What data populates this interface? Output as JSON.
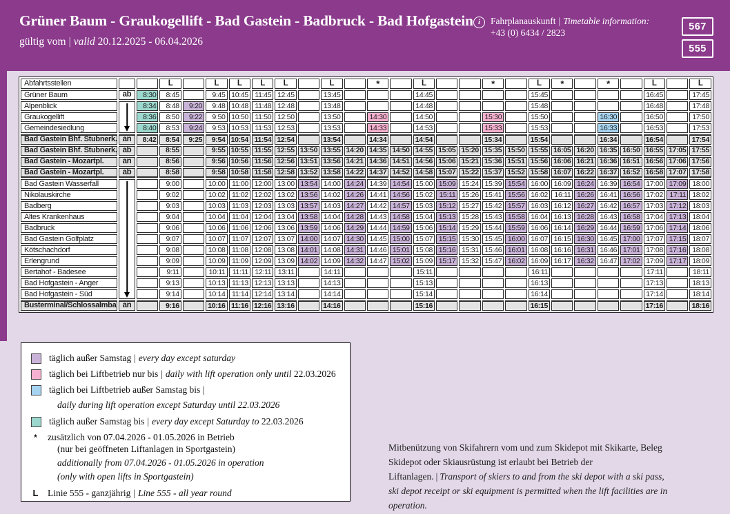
{
  "misc": {
    "pipe": "|"
  },
  "header": {
    "title": "Grüner Baum - Graukogellift - Bad Gastein - Badbruck - Bad Hofgastein",
    "validity_label": "gültig vom",
    "validity_valid": "valid",
    "validity_dates": "20.12.2025 - 06.04.2026",
    "info_label_de": "Fahrplanauskunft",
    "info_label_en": "Timetable information:",
    "info_phone": "+43 (0) 6434 / 2823",
    "route_numbers": [
      "567",
      "555"
    ]
  },
  "colors": {
    "brand_purple": "#8b3a8c",
    "page_background": "#e3d8e8",
    "cell_lavender": "#cab3d8",
    "cell_pink": "#f7b1d0",
    "cell_blue": "#a6d4f0",
    "cell_teal": "#9cd8ce",
    "bold_row_gray": "#e3e3e3",
    "grid_line": "#2b2b2b"
  },
  "table": {
    "corner_label": "Abfahrtsstellen",
    "column_markers": [
      "",
      "L",
      "",
      "L",
      "L",
      "L",
      "L",
      "",
      "L",
      "",
      "*",
      "",
      "L",
      "",
      "",
      "*",
      "",
      "L",
      "*",
      "",
      "*",
      "",
      "L",
      "",
      "L"
    ],
    "arrows": [
      {
        "start": 1,
        "end": 3
      },
      {
        "start": 8,
        "end": 18
      }
    ],
    "rows": [
      {
        "stop": "Grüner Baum",
        "marker": "ab",
        "bold": false,
        "times": [
          "8:30|t",
          "8:45",
          "",
          "9:45",
          "10:45",
          "11:45",
          "12:45",
          "",
          "13:45",
          "",
          "",
          "",
          "14:45",
          "",
          "",
          "",
          "",
          "15:45",
          "",
          "",
          "",
          "",
          "16:45",
          "",
          "17:45"
        ]
      },
      {
        "stop": "Alpenblick",
        "marker": "",
        "bold": false,
        "times": [
          "8:34|t",
          "8:48",
          "9:20|l",
          "9:48",
          "10:48",
          "11:48",
          "12:48",
          "",
          "13:48",
          "",
          "",
          "",
          "14:48",
          "",
          "",
          "",
          "",
          "15:48",
          "",
          "",
          "",
          "",
          "16:48",
          "",
          "17:48"
        ]
      },
      {
        "stop": "Graukogellift",
        "marker": "",
        "bold": false,
        "times": [
          "8:36|t",
          "8:50",
          "9:22|l",
          "9:50",
          "10:50",
          "11:50",
          "12:50",
          "",
          "13:50",
          "",
          "14:30|p",
          "",
          "14:50",
          "",
          "",
          "15:30|p",
          "",
          "15:50",
          "",
          "",
          "16:30|b",
          "",
          "16:50",
          "",
          "17:50"
        ]
      },
      {
        "stop": "Gemeindesiedlung",
        "marker": "",
        "bold": false,
        "times": [
          "8:40|t",
          "8:53",
          "9:24|l",
          "9:53",
          "10:53",
          "11:53",
          "12:53",
          "",
          "13:53",
          "",
          "14:33|p",
          "",
          "14:53",
          "",
          "",
          "15:33|p",
          "",
          "15:53",
          "",
          "",
          "16:33|b",
          "",
          "16:53",
          "",
          "17:53"
        ]
      },
      {
        "stop": "Bad Gastein Bhf. Stubnerk.",
        "marker": "an",
        "bold": true,
        "times": [
          "8:42|t",
          "8:54",
          "9:25|l",
          "9:54",
          "10:54",
          "11:54",
          "12:54",
          "",
          "13:54",
          "",
          "14:34|p",
          "",
          "14:54",
          "",
          "",
          "15:34|p",
          "",
          "15:54",
          "",
          "",
          "16:34|b",
          "",
          "16:54",
          "",
          "17:54"
        ]
      },
      {
        "stop": "Bad Gastein Bhf. Stubnerk.",
        "marker": "ab",
        "bold": true,
        "times": [
          "",
          "8:55",
          "",
          "9:55",
          "10:55",
          "11:55",
          "12:55",
          "13:50|l",
          "13:55",
          "14:20|l",
          "14:35",
          "14:50|l",
          "14:55",
          "15:05|l",
          "15:20",
          "15:35",
          "15:50|l",
          "15:55",
          "16:05",
          "16:20|l",
          "16:35",
          "16:50|l",
          "16:55",
          "17:05|l",
          "17:55"
        ]
      },
      {
        "stop": "Bad Gastein - Mozartpl.",
        "marker": "an",
        "bold": true,
        "times": [
          "",
          "8:56",
          "",
          "9:56",
          "10:56",
          "11:56",
          "12:56",
          "13:51|l",
          "13:56",
          "14:21|l",
          "14:36",
          "14:51|l",
          "14:56",
          "15:06|l",
          "15:21",
          "15:36",
          "15:51|l",
          "15:56",
          "16:06",
          "16:21|l",
          "16:36",
          "16:51|l",
          "16:56",
          "17:06|l",
          "17:56"
        ]
      },
      {
        "stop": "Bad Gastein - Mozartpl.",
        "marker": "ab",
        "bold": true,
        "times": [
          "",
          "8:58",
          "",
          "9:58",
          "10:58",
          "11:58",
          "12:58",
          "13:52|l",
          "13:58",
          "14:22|l",
          "14:37",
          "14:52|l",
          "14:58",
          "15:07|l",
          "15:22",
          "15:37",
          "15:52|l",
          "15:58",
          "16:07",
          "16:22|l",
          "16:37",
          "16:52|l",
          "16:58",
          "17:07|l",
          "17:58"
        ]
      },
      {
        "stop": "Bad Gastein Wasserfall",
        "marker": "",
        "bold": false,
        "times": [
          "",
          "9:00",
          "",
          "10:00",
          "11:00",
          "12:00",
          "13:00",
          "13:54|l",
          "14:00",
          "14:24|l",
          "14:39",
          "14:54|l",
          "15:00",
          "15:09|l",
          "15:24",
          "15:39",
          "15:54|l",
          "16:00",
          "16:09",
          "16:24|l",
          "16:39",
          "16:54|l",
          "17:00",
          "17:09|l",
          "18:00"
        ]
      },
      {
        "stop": "Nikolauskirche",
        "marker": "",
        "bold": false,
        "times": [
          "",
          "9:02",
          "",
          "10:02",
          "11:02",
          "12:02",
          "13:02",
          "13:56|l",
          "14:02",
          "14:26|l",
          "14:41",
          "14:56|l",
          "15:02",
          "15:11|l",
          "15:26",
          "15:41",
          "15:56|l",
          "16:02",
          "16:11",
          "16:26|l",
          "16:41",
          "16:56|l",
          "17:02",
          "17:11|l",
          "18:02"
        ]
      },
      {
        "stop": "Badberg",
        "marker": "",
        "bold": false,
        "times": [
          "",
          "9:03",
          "",
          "10:03",
          "11:03",
          "12:03",
          "13:03",
          "13:57|l",
          "14:03",
          "14:27|l",
          "14:42",
          "14:57|l",
          "15:03",
          "15:12|l",
          "15:27",
          "15:42",
          "15:57|l",
          "16:03",
          "16:12",
          "16:27|l",
          "16:42",
          "16:57|l",
          "17:03",
          "17:12|l",
          "18:03"
        ]
      },
      {
        "stop": "Altes Krankenhaus",
        "marker": "",
        "bold": false,
        "times": [
          "",
          "9:04",
          "",
          "10:04",
          "11:04",
          "12:04",
          "13:04",
          "13:58|l",
          "14:04",
          "14:28|l",
          "14:43",
          "14:58|l",
          "15:04",
          "15:13|l",
          "15:28",
          "15:43",
          "15:58|l",
          "16:04",
          "16:13",
          "16:28|l",
          "16:43",
          "16:58|l",
          "17:04",
          "17:13|l",
          "18:04"
        ]
      },
      {
        "stop": "Badbruck",
        "marker": "",
        "bold": false,
        "times": [
          "",
          "9:06",
          "",
          "10:06",
          "11:06",
          "12:06",
          "13:06",
          "13:59|l",
          "14:06",
          "14:29|l",
          "14:44",
          "14:59|l",
          "15:06",
          "15:14|l",
          "15:29",
          "15:44",
          "15:59|l",
          "16:06",
          "16:14",
          "16:29|l",
          "16:44",
          "16:59|l",
          "17:06",
          "17:14|l",
          "18:06"
        ]
      },
      {
        "stop": "Bad Gastein Golfplatz",
        "marker": "",
        "bold": false,
        "times": [
          "",
          "9:07",
          "",
          "10:07",
          "11:07",
          "12:07",
          "13:07",
          "14:00|l",
          "14:07",
          "14:30|l",
          "14:45",
          "15:00|l",
          "15:07",
          "15:15|l",
          "15:30",
          "15:45",
          "16:00|l",
          "16:07",
          "16:15",
          "16:30|l",
          "16:45",
          "17:00|l",
          "17:07",
          "17:15|l",
          "18:07"
        ]
      },
      {
        "stop": "Kötschachdorf",
        "marker": "",
        "bold": false,
        "times": [
          "",
          "9:08",
          "",
          "10:08",
          "11:08",
          "12:08",
          "13:08",
          "14:01|l",
          "14:08",
          "14:31|l",
          "14:46",
          "15:01|l",
          "15:08",
          "15:16|l",
          "15:31",
          "15:46",
          "16:01|l",
          "16:08",
          "16:16",
          "16:31|l",
          "16:46",
          "17:01|l",
          "17:08",
          "17:16|l",
          "18:08"
        ]
      },
      {
        "stop": "Erlengrund",
        "marker": "",
        "bold": false,
        "times": [
          "",
          "9:09",
          "",
          "10:09",
          "11:09",
          "12:09",
          "13:09",
          "14:02|l",
          "14:09",
          "14:32|l",
          "14:47",
          "15:02|l",
          "15:09",
          "15:17|l",
          "15:32",
          "15:47",
          "16:02|l",
          "16:09",
          "16:17",
          "16:32|l",
          "16:47",
          "17:02|l",
          "17:09",
          "17:17|l",
          "18:09"
        ]
      },
      {
        "stop": "Bertahof - Badesee",
        "marker": "",
        "bold": false,
        "times": [
          "",
          "9:11",
          "",
          "10:11",
          "11:11",
          "12:11",
          "13:11",
          "",
          "14:11",
          "",
          "",
          "",
          "15:11",
          "",
          "",
          "",
          "",
          "16:11",
          "",
          "",
          "",
          "",
          "17:11",
          "",
          "18:11"
        ]
      },
      {
        "stop": "Bad Hofgastein - Anger",
        "marker": "",
        "bold": false,
        "times": [
          "",
          "9:13",
          "",
          "10:13",
          "11:13",
          "12:13",
          "13:13",
          "",
          "14:13",
          "",
          "",
          "",
          "15:13",
          "",
          "",
          "",
          "",
          "16:13",
          "",
          "",
          "",
          "",
          "17:13",
          "",
          "18:13"
        ]
      },
      {
        "stop": "Bad Hofgastein - Süd",
        "marker": "",
        "bold": false,
        "times": [
          "",
          "9:14",
          "",
          "10:14",
          "11:14",
          "12:14",
          "13:14",
          "",
          "14:14",
          "",
          "",
          "",
          "15:14",
          "",
          "",
          "",
          "",
          "16:14",
          "",
          "",
          "",
          "",
          "17:14",
          "",
          "18:14"
        ]
      },
      {
        "stop": "Busterminal/Schlossalmbahn",
        "marker": "an",
        "bold": true,
        "times": [
          "",
          "9:16",
          "",
          "10:16",
          "11:16",
          "12:16",
          "13:16",
          "",
          "14:16",
          "",
          "",
          "",
          "15:16",
          "",
          "",
          "",
          "",
          "16:15",
          "",
          "",
          "",
          "",
          "17:16",
          "",
          "18:16"
        ]
      }
    ]
  },
  "legend": {
    "items": [
      {
        "de": "täglich außer Samstag",
        "en": "every day except saturday"
      },
      {
        "de": "täglich bei Liftbetrieb nur bis",
        "en": "daily with lift operation only until",
        "date": "22.03.2026"
      },
      {
        "de": "täglich bei Liftbetrieb außer Samstag bis |",
        "en": "daily during lift operation except Saturday until 22.03.2026"
      },
      {
        "de": "täglich außer Samstag bis",
        "en": "every day except Saturday to",
        "date": "22.03.2026"
      },
      {
        "symbol": "*",
        "de1": "zusätzlich von 07.04.2026 - 01.05.2026 in Betrieb",
        "de2": "(nur bei geöffneten Liftanlagen in Sportgastein)",
        "en1": "additionally from 07.04.2026 - 01.05.2026 in operation",
        "en2": "(only with open lifts in Sportgastein)"
      },
      {
        "symbol": "L",
        "de": "Linie 555 - ganzjährig",
        "en": "Line 555 - all year round"
      }
    ]
  },
  "note": {
    "de": "Mitbenützung von Skifahrern vom und zum Skidepot mit Skikarte, Beleg Skidepot oder Skiausrüstung ist erlaubt bei Betrieb der Liftanlagen.",
    "en": "Transport of skiers to and from the ski depot with a ski pass, ski depot receipt or ski equipment is permitted when the lift facilities are in operation."
  }
}
